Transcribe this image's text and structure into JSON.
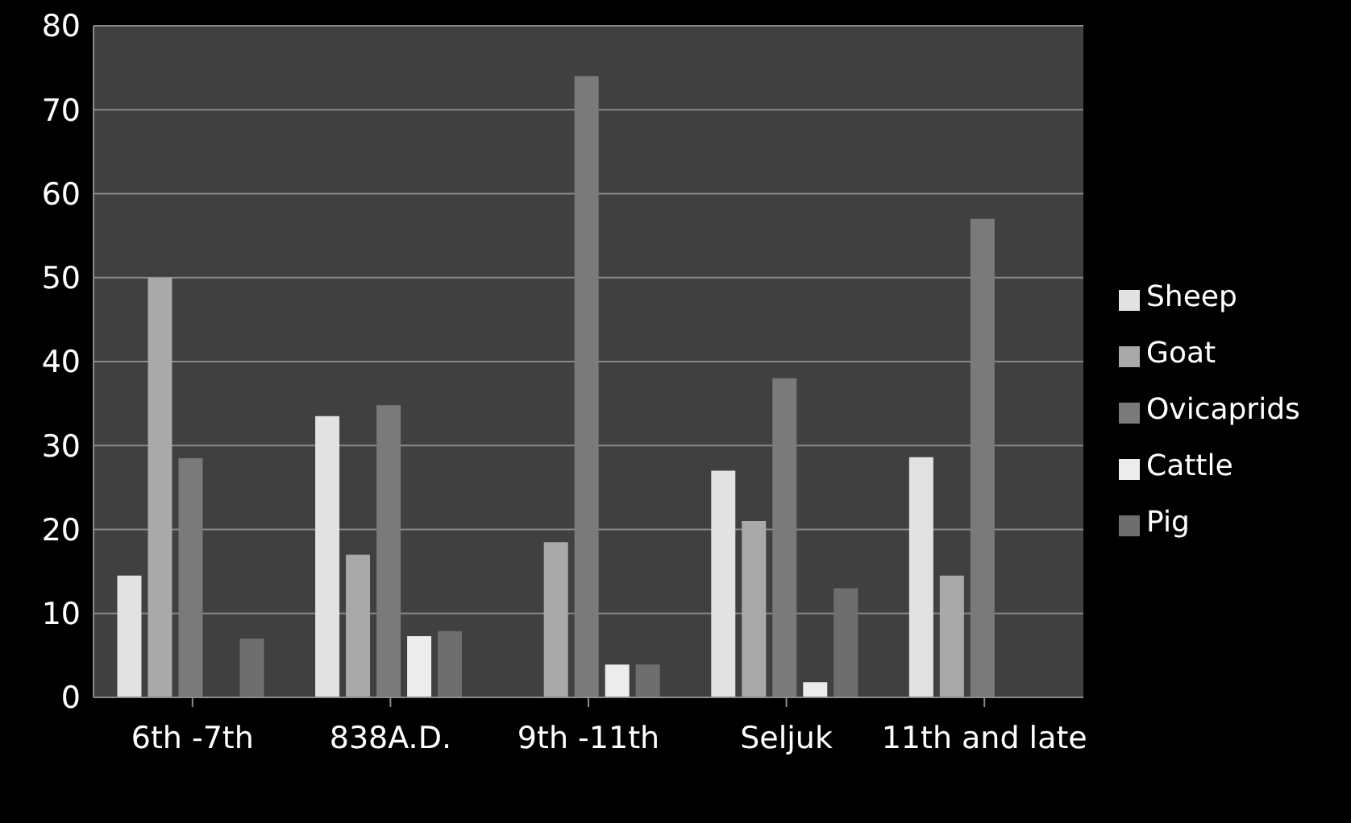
{
  "chart_data": {
    "type": "bar",
    "categories": [
      "6th -7th",
      "838A.D.",
      "9th -11th",
      "Seljuk",
      "11th  and late"
    ],
    "series": [
      {
        "name": "Sheep",
        "color": "#e2e2e2",
        "values": [
          14.5,
          33.5,
          null,
          27,
          28.6
        ]
      },
      {
        "name": "Goat",
        "color": "#a9a9a9",
        "values": [
          50,
          17,
          18.5,
          21,
          14.5
        ]
      },
      {
        "name": "Ovicaprids",
        "color": "#7a7a7a",
        "values": [
          28.5,
          34.8,
          74,
          38,
          57
        ]
      },
      {
        "name": "Cattle",
        "color": "#ececec",
        "values": [
          null,
          7.3,
          3.9,
          1.8,
          null
        ]
      },
      {
        "name": "Pig",
        "color": "#6e6e6e",
        "values": [
          7,
          7.9,
          3.9,
          13,
          null
        ]
      }
    ],
    "ylim": [
      0,
      80
    ],
    "yticks": [
      0,
      10,
      20,
      30,
      40,
      50,
      60,
      70,
      80
    ],
    "grid": "y",
    "legend": "right"
  }
}
